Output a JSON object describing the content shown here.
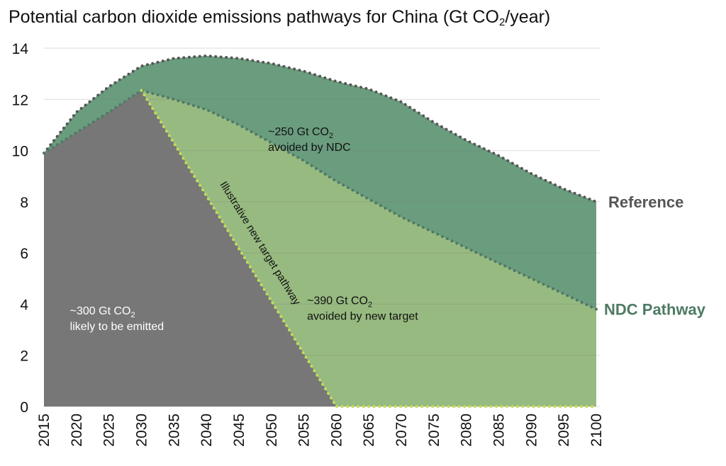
{
  "chart_data": {
    "type": "area",
    "title_main": "Potential carbon dioxide emissions pathways for China (Gt CO",
    "title_sub": "2",
    "title_end": "/year)",
    "x": [
      2015,
      2020,
      2025,
      2030,
      2035,
      2040,
      2045,
      2050,
      2055,
      2060,
      2065,
      2070,
      2075,
      2080,
      2085,
      2090,
      2095,
      2100
    ],
    "xlim": [
      2015,
      2100
    ],
    "ylim": [
      0,
      14
    ],
    "yticks": [
      0,
      2,
      4,
      6,
      8,
      10,
      12,
      14
    ],
    "grid": true,
    "series": [
      {
        "name": "Reference",
        "color": "#6a9c7e",
        "label_color": "#555555",
        "dot_color": "#555555",
        "values": [
          9.9,
          11.5,
          12.5,
          13.3,
          13.6,
          13.7,
          13.6,
          13.4,
          13.1,
          12.7,
          12.4,
          11.9,
          11.1,
          10.4,
          9.8,
          9.1,
          8.5,
          8.0
        ]
      },
      {
        "name": "NDC Pathway",
        "color": "#97ba80",
        "label_color": "#4e7a63",
        "dot_color": "#4f7a66",
        "values": [
          9.9,
          10.7,
          11.5,
          12.35,
          12.0,
          11.6,
          11.0,
          10.3,
          9.6,
          8.8,
          8.1,
          7.4,
          6.8,
          6.2,
          5.6,
          5.0,
          4.4,
          3.8
        ]
      },
      {
        "name": "Illustrative new target pathway",
        "color": "#777777",
        "dot_color": "#c5dc5a",
        "values": [
          9.9,
          10.7,
          11.5,
          12.35,
          10.29,
          8.23,
          6.17,
          4.12,
          2.06,
          0,
          0,
          0,
          0,
          0,
          0,
          0,
          0,
          0
        ]
      }
    ],
    "annotations": [
      {
        "line1": "~250 Gt CO",
        "sub": "2",
        "line2": "avoided by NDC",
        "x": 2049.5,
        "y": 10.6
      },
      {
        "line1": "~390 Gt CO",
        "sub": "2",
        "line2": "avoided by new target",
        "x": 2055.5,
        "y": 4.0
      },
      {
        "line1": "~300 Gt CO",
        "sub": "2",
        "line2": "likely to be emitted",
        "x": 2019,
        "y": 3.6
      }
    ],
    "pathway_label": "Illustrative new target pathway"
  }
}
